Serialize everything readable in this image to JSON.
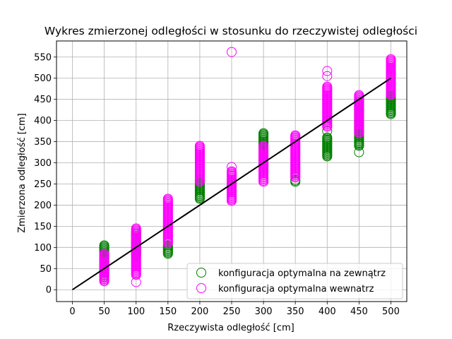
{
  "chart_data": {
    "type": "scatter",
    "title": "Wykres zmierzonej odległości w stosunku do rzeczywistej odległości",
    "xlabel": "Rzeczywista odległość [cm]",
    "ylabel": "Zmierzona odległość [cm]",
    "xlim": [
      -25,
      525
    ],
    "ylim": [
      -28,
      588
    ],
    "xticks": [
      0,
      50,
      100,
      150,
      200,
      250,
      300,
      350,
      400,
      450,
      500
    ],
    "yticks": [
      0,
      50,
      100,
      150,
      200,
      250,
      300,
      350,
      400,
      450,
      500,
      550
    ],
    "grid": true,
    "legend_position": "bottom-right",
    "reference_line": {
      "x": [
        0,
        500
      ],
      "y": [
        0,
        500
      ],
      "color": "#000000"
    },
    "series": [
      {
        "name": "konfiguracja optymalna na zewnątrz",
        "color": "#008000",
        "marker": "open-circle",
        "points": [
          {
            "x": 50,
            "range": [
              30,
              105
            ],
            "extra": []
          },
          {
            "x": 100,
            "range": [
              80,
              135
            ],
            "extra": []
          },
          {
            "x": 150,
            "range": [
              85,
              105
            ],
            "extra": []
          },
          {
            "x": 200,
            "range": [
              215,
              260
            ],
            "extra": []
          },
          {
            "x": 250,
            "range": [
              235,
              260
            ],
            "extra": []
          },
          {
            "x": 300,
            "range": [
              285,
              372
            ],
            "extra": []
          },
          {
            "x": 350,
            "range": [
              255,
              262
            ],
            "extra": []
          },
          {
            "x": 400,
            "range": [
              315,
              360
            ],
            "extra": [
              375
            ]
          },
          {
            "x": 450,
            "range": [
              340,
              445
            ],
            "extra": [
              325
            ]
          },
          {
            "x": 500,
            "range": [
              415,
              460
            ],
            "extra": []
          }
        ]
      },
      {
        "name": "konfiguracja optymalna wewnatrz",
        "color": "#ff00ff",
        "marker": "open-circle",
        "points": [
          {
            "x": 50,
            "range": [
              20,
              85
            ],
            "extra": []
          },
          {
            "x": 100,
            "range": [
              35,
              145
            ],
            "extra": [
              18
            ]
          },
          {
            "x": 150,
            "range": [
              110,
              215
            ],
            "extra": []
          },
          {
            "x": 200,
            "range": [
              255,
              342
            ],
            "extra": []
          },
          {
            "x": 250,
            "range": [
              210,
              280
            ],
            "extra": [
              290,
              562
            ]
          },
          {
            "x": 300,
            "range": [
              255,
              340
            ],
            "extra": []
          },
          {
            "x": 350,
            "range": [
              265,
              365
            ],
            "extra": []
          },
          {
            "x": 400,
            "range": [
              385,
              480
            ],
            "extra": [
              400,
              505,
              517
            ]
          },
          {
            "x": 450,
            "range": [
              370,
              462
            ],
            "extra": []
          },
          {
            "x": 500,
            "range": [
              460,
              547
            ],
            "extra": []
          }
        ]
      }
    ]
  }
}
